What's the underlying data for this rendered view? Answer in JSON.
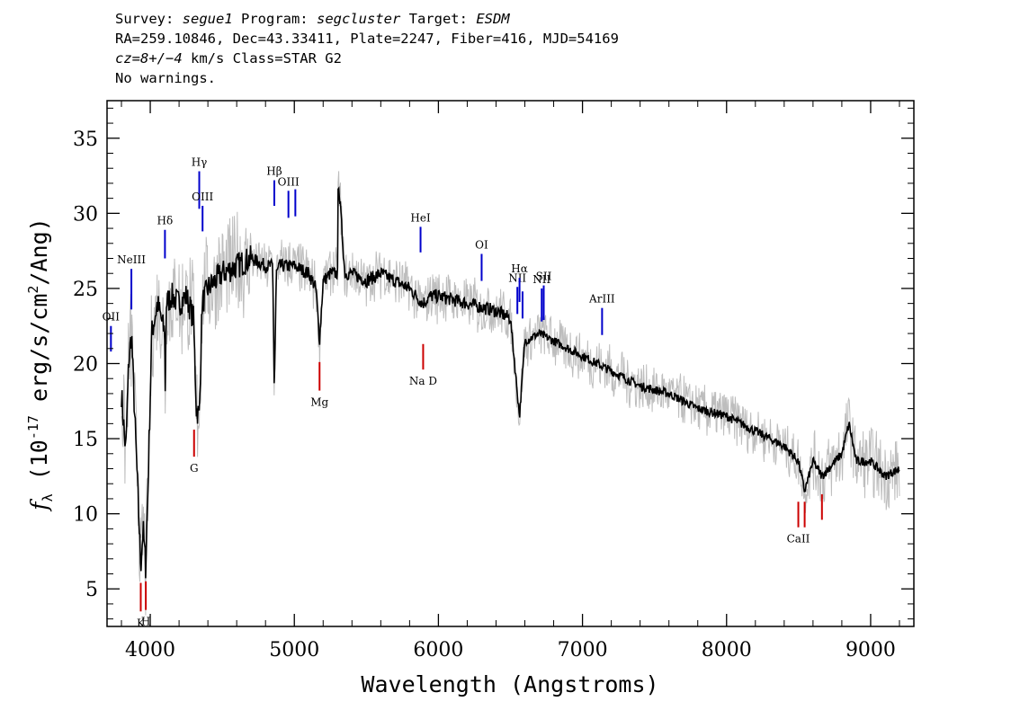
{
  "header": {
    "line1_prefix": "Survey: ",
    "survey": "segue1",
    "line1_mid": " Program: ",
    "program": "segcluster",
    "line1_mid2": " Target: ",
    "target": "ESDM",
    "line2": "RA=259.10846, Dec=43.33411, Plate=2247, Fiber=416, MJD=54169",
    "line3_cz": "cz=8+/−4",
    "line3_rest": " km/s Class=STAR G2",
    "line4": "No warnings."
  },
  "chart_data": {
    "type": "line",
    "xlabel": "Wavelength (Angstroms)",
    "ylabel": "fλ (10⁻¹⁷ erg/s/cm²/Ang)",
    "xlim": [
      3700,
      9300
    ],
    "ylim": [
      2.5,
      37.5
    ],
    "x_ticks": [
      4000,
      5000,
      6000,
      7000,
      8000,
      9000
    ],
    "y_ticks": [
      5,
      10,
      15,
      20,
      25,
      30,
      35
    ],
    "grid": false,
    "series": [
      {
        "color": "#000000",
        "x": [
          3800,
          3830,
          3850,
          3870,
          3890,
          3920,
          3934,
          3950,
          3968,
          3985,
          4010,
          4050,
          4100,
          4102,
          4110,
          4150,
          4200,
          4250,
          4300,
          4320,
          4340,
          4360,
          4400,
          4500,
          4600,
          4700,
          4800,
          4850,
          4861,
          4875,
          4900,
          5000,
          5100,
          5150,
          5175,
          5200,
          5250,
          5300,
          5305,
          5350,
          5400,
          5500,
          5600,
          5700,
          5800,
          5890,
          5950,
          6000,
          6200,
          6400,
          6500,
          6563,
          6600,
          6700,
          6800,
          7000,
          7200,
          7400,
          7600,
          7800,
          8000,
          8200,
          8400,
          8498,
          8542,
          8600,
          8662,
          8800,
          8850,
          8900,
          9000,
          9100,
          9200
        ],
        "y": [
          18,
          14,
          20,
          22,
          17,
          10,
          6.5,
          9,
          6.5,
          12,
          22,
          24,
          22,
          16,
          24,
          24.5,
          24,
          24.5,
          23,
          17,
          16.5,
          24,
          25,
          26,
          26.5,
          27,
          26.5,
          26.5,
          18,
          26,
          26.5,
          26.5,
          26,
          25,
          21.5,
          25.5,
          26,
          26,
          32.5,
          26,
          26,
          25.5,
          26,
          25.5,
          25,
          24,
          24.5,
          24.5,
          24,
          23.5,
          23,
          16.5,
          21.5,
          22,
          21.5,
          20.5,
          19.5,
          18.5,
          18,
          17,
          16.5,
          15.5,
          14.5,
          13.5,
          11.5,
          13.5,
          12.5,
          14,
          16,
          13.5,
          13.5,
          12.5,
          13
        ]
      }
    ],
    "emission_lines": [
      {
        "label": "OII",
        "wavelength": 3727,
        "y_low": 20.8,
        "y_high": 22.5
      },
      {
        "label": "NeIII",
        "wavelength": 3869,
        "y_low": 23.6,
        "y_high": 26.3
      },
      {
        "label": "Hδ",
        "wavelength": 4102,
        "y_low": 27.0,
        "y_high": 28.9
      },
      {
        "label": "Hγ",
        "wavelength": 4340,
        "y_low": 30.3,
        "y_high": 32.8
      },
      {
        "label": "OIII",
        "wavelength": 4363,
        "y_low": 28.8,
        "y_high": 30.5
      },
      {
        "label": "Hβ",
        "wavelength": 4861,
        "y_low": 30.5,
        "y_high": 32.2
      },
      {
        "label": "OIII",
        "wavelength": 4959,
        "y_low": 29.7,
        "y_high": 31.5
      },
      {
        "label": "",
        "wavelength": 5007,
        "y_low": 29.8,
        "y_high": 31.6
      },
      {
        "label": "HeI",
        "wavelength": 5876,
        "y_low": 27.4,
        "y_high": 29.1
      },
      {
        "label": "OI",
        "wavelength": 6300,
        "y_low": 25.5,
        "y_high": 27.3
      },
      {
        "label": "NII",
        "wavelength": 6548,
        "y_low": 23.3,
        "y_high": 25.1
      },
      {
        "label": "Hα",
        "wavelength": 6563,
        "y_low": 24.1,
        "y_high": 25.7
      },
      {
        "label": "",
        "wavelength": 6584,
        "y_low": 23.0,
        "y_high": 24.8
      },
      {
        "label": "NII",
        "wavelength": 6717,
        "y_low": 22.8,
        "y_high": 25.0
      },
      {
        "label": "SII",
        "wavelength": 6731,
        "y_low": 22.9,
        "y_high": 25.2
      },
      {
        "label": "ArIII",
        "wavelength": 7136,
        "y_low": 21.9,
        "y_high": 23.7
      }
    ],
    "absorption_lines": [
      {
        "label": "K",
        "wavelength": 3934,
        "y_low": 3.5,
        "y_high": 5.4
      },
      {
        "label": "H",
        "wavelength": 3969,
        "y_low": 3.6,
        "y_high": 5.5
      },
      {
        "label": "G",
        "wavelength": 4304,
        "y_low": 13.8,
        "y_high": 15.6
      },
      {
        "label": "Mg",
        "wavelength": 5175,
        "y_low": 18.2,
        "y_high": 20.1
      },
      {
        "label": "Na D",
        "wavelength": 5894,
        "y_low": 19.6,
        "y_high": 21.3
      },
      {
        "label": "CaII",
        "wavelength": 8498,
        "y_low": 9.1,
        "y_high": 10.8
      },
      {
        "label": "",
        "wavelength": 8542,
        "y_low": 9.1,
        "y_high": 10.8
      },
      {
        "label": "",
        "wavelength": 8662,
        "y_low": 9.6,
        "y_high": 11.3
      }
    ],
    "colors": {
      "flux": "#000000",
      "noise_band": "#bdbdbd",
      "emission": "#0000cc",
      "absorption": "#cc0000"
    }
  }
}
